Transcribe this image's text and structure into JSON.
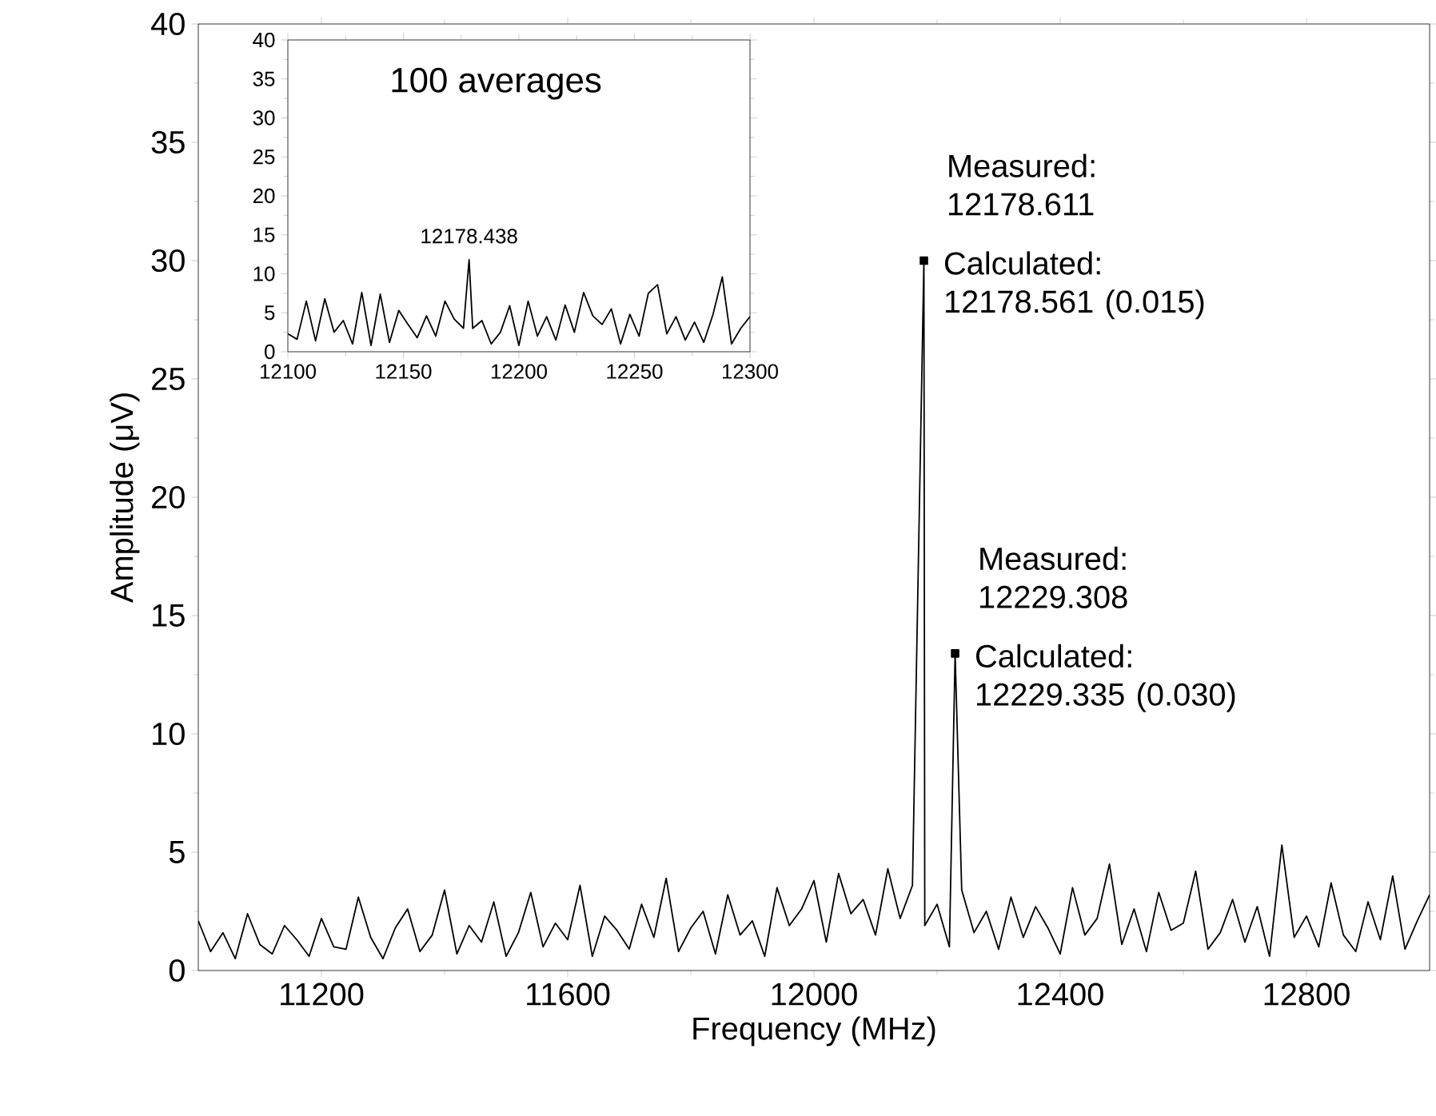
{
  "chart_data": [
    {
      "type": "line",
      "xlabel": "Frequency (MHz)",
      "ylabel": "Amplitude (μV)",
      "xlim": [
        11000,
        13000
      ],
      "ylim": [
        0,
        40
      ],
      "xticks": [
        11200,
        11600,
        12000,
        12400,
        12800
      ],
      "yticks": [
        0,
        5,
        10,
        15,
        20,
        25,
        30,
        35,
        40
      ],
      "series": [
        {
          "color": "#000000",
          "x": [
            11000,
            11020,
            11040,
            11060,
            11080,
            11100,
            11120,
            11140,
            11160,
            11180,
            11200,
            11220,
            11240,
            11260,
            11280,
            11300,
            11320,
            11340,
            11360,
            11380,
            11400,
            11420,
            11440,
            11460,
            11480,
            11500,
            11520,
            11540,
            11560,
            11580,
            11600,
            11620,
            11640,
            11660,
            11680,
            11700,
            11720,
            11740,
            11760,
            11780,
            11800,
            11820,
            11840,
            11860,
            11880,
            11900,
            11920,
            11940,
            11960,
            11980,
            12000,
            12020,
            12040,
            12060,
            12080,
            12100,
            12120,
            12140,
            12160,
            12178.6,
            12180,
            12200,
            12220,
            12229.3,
            12240,
            12260,
            12280,
            12300,
            12320,
            12340,
            12360,
            12380,
            12400,
            12420,
            12440,
            12460,
            12480,
            12500,
            12520,
            12540,
            12560,
            12580,
            12600,
            12620,
            12640,
            12660,
            12680,
            12700,
            12720,
            12740,
            12760,
            12780,
            12800,
            12820,
            12840,
            12860,
            12880,
            12900,
            12920,
            12940,
            12960,
            12980,
            13000
          ],
          "values": [
            2.1,
            0.8,
            1.6,
            0.5,
            2.4,
            1.1,
            0.7,
            1.9,
            1.3,
            0.6,
            2.2,
            1.0,
            0.9,
            3.1,
            1.4,
            0.5,
            1.8,
            2.6,
            0.8,
            1.5,
            3.4,
            0.7,
            1.9,
            1.2,
            2.9,
            0.6,
            1.6,
            3.3,
            1.0,
            2.0,
            1.3,
            3.6,
            0.6,
            2.3,
            1.7,
            0.9,
            2.8,
            1.4,
            3.9,
            0.8,
            1.8,
            2.5,
            0.7,
            3.2,
            1.5,
            2.1,
            0.6,
            3.5,
            1.9,
            2.6,
            3.8,
            1.2,
            4.1,
            2.4,
            3.0,
            1.5,
            4.3,
            2.2,
            3.6,
            30,
            1.9,
            2.8,
            1.0,
            13.4,
            3.4,
            1.6,
            2.5,
            0.9,
            3.1,
            1.4,
            2.7,
            1.8,
            0.7,
            3.5,
            1.5,
            2.2,
            4.5,
            1.1,
            2.6,
            0.8,
            3.3,
            1.7,
            2.0,
            4.2,
            0.9,
            1.6,
            3.0,
            1.2,
            2.7,
            0.6,
            5.3,
            1.4,
            2.3,
            1.0,
            3.7,
            1.5,
            0.8,
            2.9,
            1.3,
            4.0,
            0.9,
            2.1,
            3.2
          ]
        },
        {
          "type": "scatter",
          "marker": "square",
          "color": "#000000",
          "x": [
            12178.6,
            12229.3
          ],
          "values": [
            30,
            13.4
          ]
        }
      ],
      "annotations": [
        {
          "text": "Measured: 12178.611",
          "x": 12178.6,
          "y": 30
        },
        {
          "text": "Calculated: 12178.561 (0.015)",
          "x": 12178.6,
          "y": 30
        },
        {
          "text": "Measured: 12229.308",
          "x": 12229.3,
          "y": 13.4
        },
        {
          "text": "Calculated: 12229.335 (0.030)",
          "x": 12229.3,
          "y": 13.4
        }
      ]
    },
    {
      "type": "line",
      "xlim": [
        12100,
        12300
      ],
      "ylim": [
        0,
        40
      ],
      "xticks": [
        12100,
        12150,
        12200,
        12250,
        12300
      ],
      "yticks": [
        0,
        5,
        10,
        15,
        20,
        25,
        30,
        35,
        40
      ],
      "series": [
        {
          "color": "#000000",
          "x": [
            12100,
            12104,
            12108,
            12112,
            12116,
            12120,
            12124,
            12128,
            12132,
            12136,
            12140,
            12144,
            12148,
            12152,
            12156,
            12160,
            12164,
            12168,
            12172,
            12176,
            12178.438,
            12180,
            12184,
            12188,
            12192,
            12196,
            12200,
            12204,
            12208,
            12212,
            12216,
            12220,
            12224,
            12228,
            12232,
            12236,
            12240,
            12244,
            12248,
            12252,
            12256,
            12260,
            12264,
            12268,
            12272,
            12276,
            12280,
            12284,
            12288,
            12292,
            12296,
            12300
          ],
          "values": [
            2.3,
            1.6,
            6.5,
            1.4,
            6.8,
            2.5,
            4.0,
            1.0,
            7.6,
            0.8,
            7.4,
            1.2,
            5.3,
            3.5,
            1.8,
            4.6,
            2.0,
            6.5,
            4.2,
            3.0,
            11.8,
            3.0,
            4.0,
            1.0,
            2.5,
            5.9,
            0.8,
            6.5,
            2.0,
            4.5,
            1.5,
            6.0,
            2.5,
            7.6,
            4.6,
            3.5,
            5.5,
            1.0,
            4.8,
            2.0,
            7.5,
            8.6,
            2.3,
            4.5,
            1.5,
            3.8,
            1.2,
            4.8,
            9.6,
            1.0,
            3.0,
            4.5
          ]
        }
      ],
      "annotations": [
        "100 averages",
        {
          "text": "12178.438",
          "x": 12178.438,
          "y": 11.8
        }
      ]
    }
  ]
}
